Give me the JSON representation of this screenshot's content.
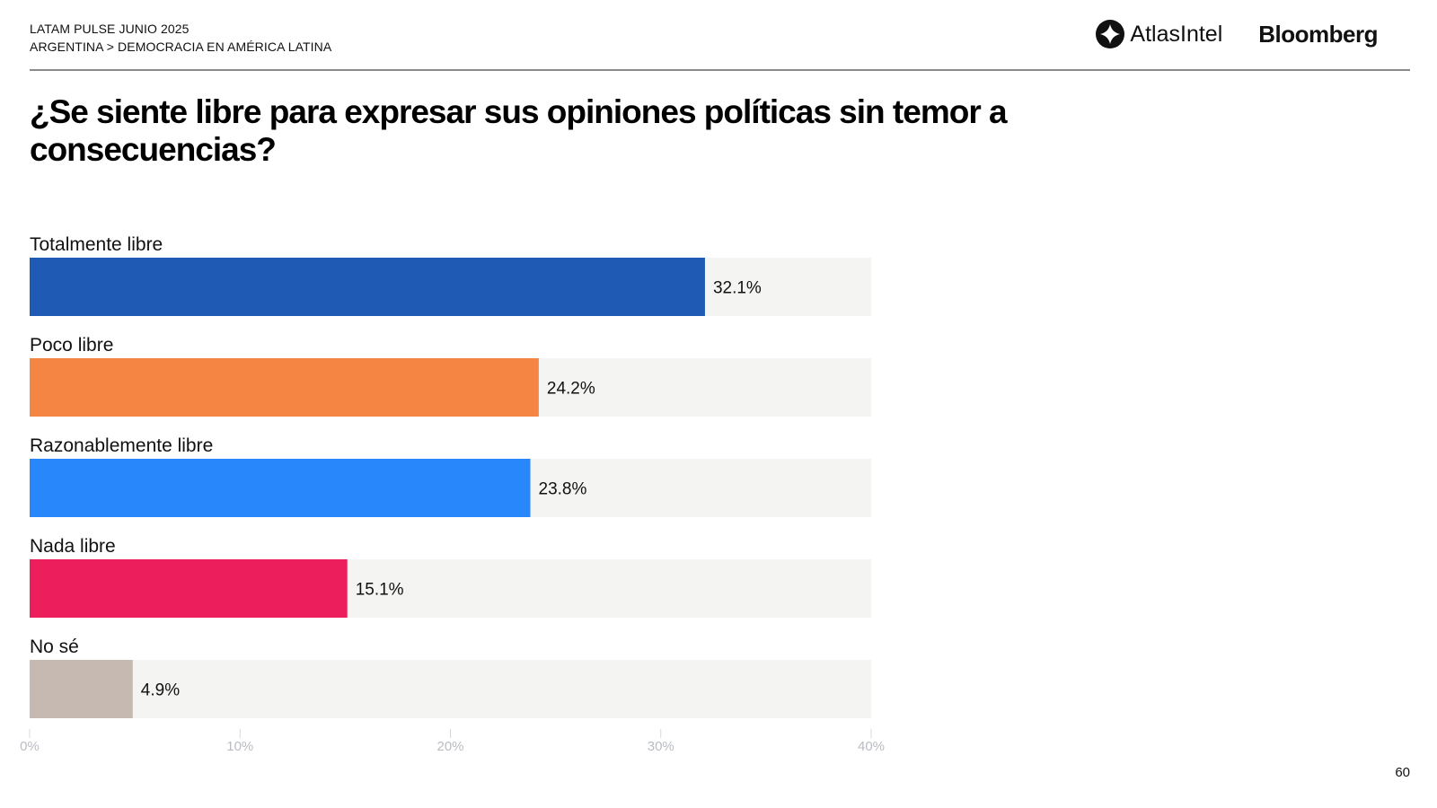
{
  "header": {
    "kicker_line1": "LATAM PULSE JUNIO 2025",
    "kicker_line2": "ARGENTINA > DEMOCRACIA EN AMÉRICA LATINA",
    "logo_atlas": "AtlasIntel",
    "logo_bloomberg": "Bloomberg"
  },
  "footer": {
    "page_number": "60"
  },
  "chart_data": {
    "type": "bar",
    "orientation": "horizontal",
    "title": "¿Se siente libre para expresar sus opiniones políticas sin temor a consecuencias?",
    "categories": [
      "Totalmente libre",
      "Poco libre",
      "Razonablemente libre",
      "Nada libre",
      "No sé"
    ],
    "values": [
      32.1,
      24.2,
      23.8,
      15.1,
      4.9
    ],
    "value_labels": [
      "32.1%",
      "24.2%",
      "23.8%",
      "15.1%",
      "4.9%"
    ],
    "colors": [
      "#1f5ab4",
      "#f58542",
      "#2887fb",
      "#ec1f5c",
      "#c6b9b1"
    ],
    "track_color": "#f4f4f2",
    "xlabel": "",
    "ylabel": "",
    "xlim": [
      0,
      40
    ],
    "ticks": [
      0,
      10,
      20,
      30,
      40
    ],
    "tick_labels": [
      "0%",
      "10%",
      "20%",
      "30%",
      "40%"
    ],
    "grid": false,
    "legend": "none"
  }
}
